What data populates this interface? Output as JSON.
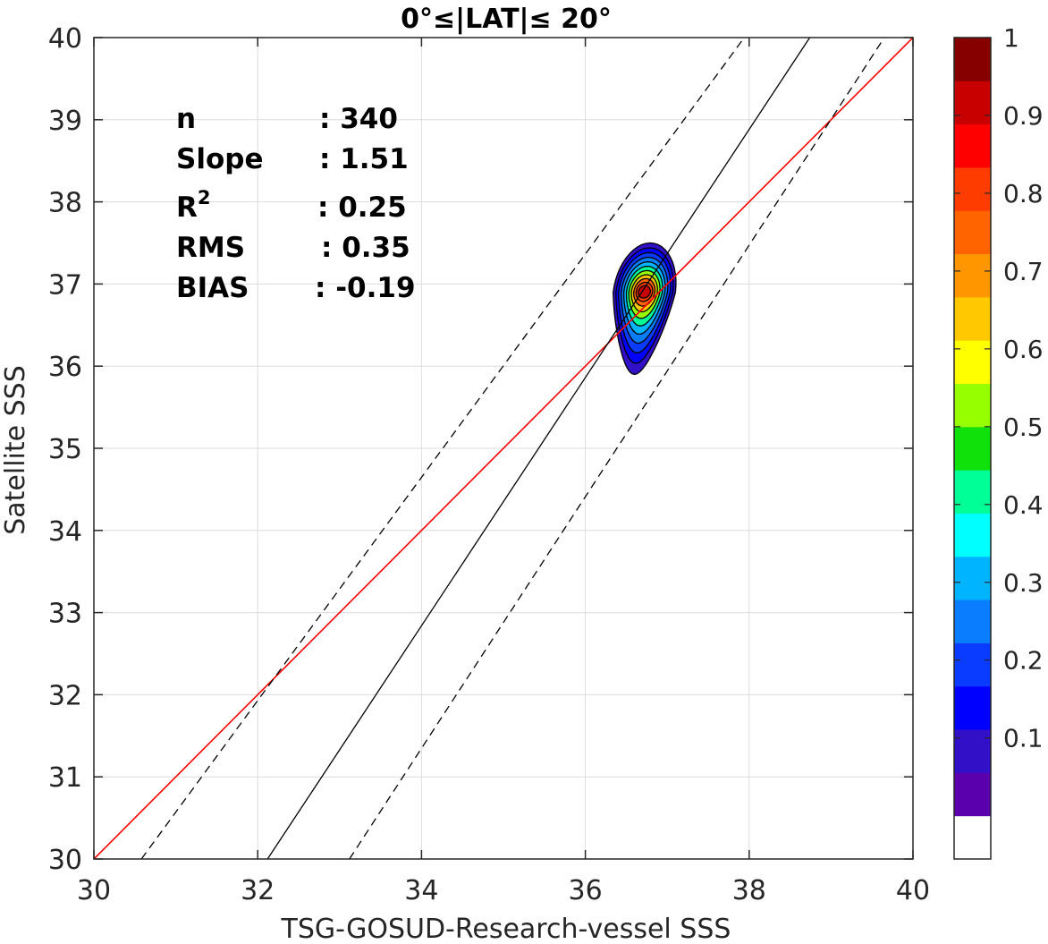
{
  "chart_data": {
    "type": "contour",
    "title": "0°≤|LAT|≤ 20°",
    "xlabel": "TSG-GOSUD-Research-vessel SSS",
    "ylabel": "Satellite SSS",
    "xlim": [
      30,
      40
    ],
    "ylim": [
      30,
      40
    ],
    "xticks": [
      "30",
      "32",
      "34",
      "36",
      "38",
      "40"
    ],
    "yticks": [
      "30",
      "31",
      "32",
      "33",
      "34",
      "35",
      "36",
      "37",
      "38",
      "39",
      "40"
    ],
    "grid": true,
    "stats": [
      {
        "key": "n",
        "value": ": 340"
      },
      {
        "key": "Slope",
        "value": ": 1.51"
      },
      {
        "key": "R",
        "sup": "2",
        "value": ": 0.25"
      },
      {
        "key": "RMS",
        "value": ": 0.35"
      },
      {
        "key": "BIAS",
        "value": ": -0.19"
      }
    ],
    "lines": [
      {
        "name": "one-to-one",
        "color": "#ff0000",
        "dash": false,
        "points": [
          [
            30,
            30
          ],
          [
            40,
            40
          ]
        ]
      },
      {
        "name": "regression",
        "color": "#000000",
        "dash": false,
        "points": [
          [
            32.12,
            30
          ],
          [
            38.74,
            40
          ]
        ]
      },
      {
        "name": "upper-bound",
        "color": "#000000",
        "dash": true,
        "points": [
          [
            30.58,
            30
          ],
          [
            37.94,
            40
          ]
        ]
      },
      {
        "name": "lower-bound",
        "color": "#000000",
        "dash": true,
        "points": [
          [
            33.12,
            30
          ],
          [
            39.65,
            40
          ]
        ]
      }
    ],
    "density_center": [
      36.72,
      36.9
    ],
    "density_levels": [
      0.05,
      0.1,
      0.15,
      0.2,
      0.3,
      0.4,
      0.5,
      0.6,
      0.7,
      0.8,
      0.9
    ],
    "colorbar": {
      "ticks": [
        "0.1",
        "0.2",
        "0.3",
        "0.4",
        "0.5",
        "0.6",
        "0.7",
        "0.8",
        "0.9",
        "1"
      ],
      "tick_values": [
        0.1,
        0.2,
        0.3,
        0.4,
        0.5,
        0.6,
        0.7,
        0.8,
        0.9,
        1.0
      ],
      "colors": [
        "#ffffff",
        "#5b00ad",
        "#3210c8",
        "#0000ff",
        "#0a3cff",
        "#0a7dff",
        "#00b4ff",
        "#00ffff",
        "#00ff96",
        "#10e10a",
        "#96ff00",
        "#ffff00",
        "#ffc800",
        "#ff9600",
        "#ff6400",
        "#ff3c00",
        "#ff0000",
        "#c80000",
        "#870000"
      ]
    }
  }
}
